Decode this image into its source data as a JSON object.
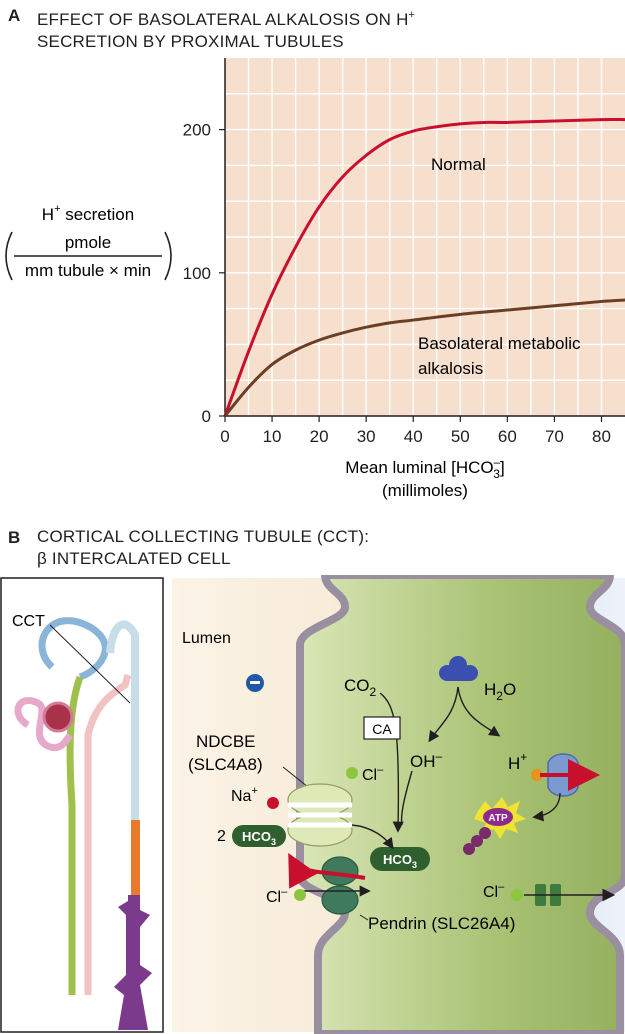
{
  "panel_a": {
    "letter": "A",
    "title_line1": "EFFECT OF BASOLATERAL ALKALOSIS ON H",
    "title_sup": "+",
    "title_line2": "SECRETION BY PROXIMAL TUBULES",
    "ylabel_main": "H",
    "ylabel_sup": "+",
    "ylabel_rest": " secretion",
    "ylabel_numerator": "pmole",
    "ylabel_denominator": "mm tubule × min",
    "xlabel_prefix": "Mean luminal [HCO",
    "xlabel_sub": "3",
    "xlabel_sup": "–",
    "xlabel_suffix": "]",
    "xlabel_units": "(millimoles)",
    "label_normal": "Normal",
    "label_alk_line1": "Basolateral metabolic",
    "label_alk_line2": "alkalosis",
    "colors": {
      "background": "#f6dfcc",
      "grid": "#ffffff",
      "normal": "#c8102e",
      "alkalosis": "#6b3f26"
    }
  },
  "chart_data": {
    "type": "line",
    "xlabel": "Mean luminal [HCO3–] (millimoles)",
    "ylabel": "H+ secretion (pmole / mm tubule × min)",
    "xlim": [
      0,
      85
    ],
    "ylim": [
      0,
      250
    ],
    "xticks": [
      0,
      10,
      20,
      30,
      40,
      50,
      60,
      70,
      80
    ],
    "yticks": [
      0,
      100,
      200
    ],
    "grid": true,
    "series": [
      {
        "name": "Normal",
        "color": "#c8102e",
        "x": [
          0,
          5,
          10,
          15,
          20,
          25,
          30,
          35,
          40,
          45,
          50,
          55,
          60,
          70,
          80,
          85
        ],
        "y": [
          0,
          45,
          85,
          118,
          146,
          167,
          182,
          193,
          199,
          202,
          204,
          205,
          205,
          206,
          207,
          207
        ]
      },
      {
        "name": "Basolateral metabolic alkalosis",
        "color": "#6b3f26",
        "x": [
          0,
          5,
          10,
          15,
          20,
          25,
          30,
          35,
          40,
          50,
          60,
          70,
          80,
          85
        ],
        "y": [
          0,
          20,
          36,
          46,
          53,
          58,
          62,
          65,
          67,
          71,
          74,
          77,
          80,
          81
        ]
      }
    ]
  },
  "panel_b": {
    "letter": "B",
    "title_line1": "CORTICAL COLLECTING TUBULE (CCT):",
    "title_line2": "β INTERCALATED CELL",
    "cct_label": "CCT",
    "lumen_label": "Lumen",
    "co2": "CO",
    "co2_sub": "2",
    "h2o": "H",
    "h2o_sub": "2",
    "h2o_end": "O",
    "ca": "CA",
    "ndcbe_line1": "NDCBE",
    "ndcbe_line2": "(SLC4A8)",
    "cl_minus": "Cl",
    "minus": "–",
    "oh_minus": "OH",
    "h_plus": "H",
    "plus": "+",
    "na_plus": "Na",
    "two": "2",
    "hco3": "HCO",
    "hco3_sub": "3",
    "atp": "ATP",
    "pendrin": "Pendrin (SLC26A4)",
    "colors": {
      "green_pill": "#2f5f2f",
      "cell": "#b9cf86",
      "lumen": "#f4e4cc",
      "blood": "#d8e4f2",
      "membrane": "#9a8fa0"
    }
  }
}
